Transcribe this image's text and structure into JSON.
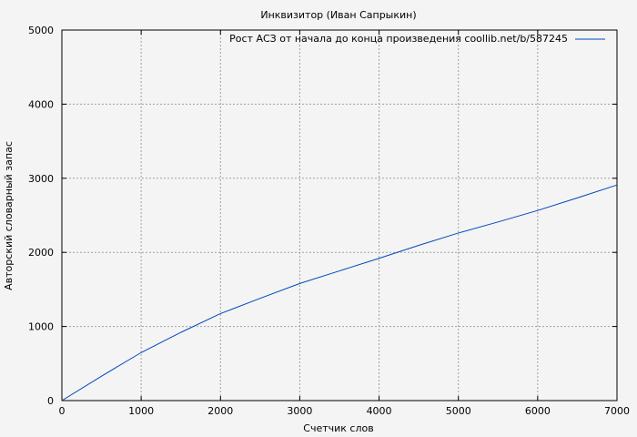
{
  "chart_data": {
    "type": "line",
    "title": "Инквизитор (Иван Сапрыкин)",
    "xlabel": "Счетчик слов",
    "ylabel": "Авторский словарный запас",
    "xlim": [
      0,
      7000
    ],
    "ylim": [
      0,
      5000
    ],
    "xticks": [
      0,
      1000,
      2000,
      3000,
      4000,
      5000,
      6000,
      7000
    ],
    "yticks": [
      0,
      1000,
      2000,
      3000,
      4000,
      5000
    ],
    "grid": true,
    "legend_position": "top-right",
    "series": [
      {
        "name": "Рост АСЗ от начала до конца произведения coollib.net/b/587245",
        "color": "#0047bb",
        "x": [
          0,
          500,
          1000,
          1500,
          2000,
          2500,
          3000,
          3500,
          4000,
          4500,
          5000,
          5500,
          6000,
          6500,
          7000
        ],
        "y": [
          0,
          330,
          648,
          920,
          1174,
          1380,
          1580,
          1750,
          1920,
          2095,
          2261,
          2410,
          2565,
          2735,
          2909
        ]
      }
    ]
  }
}
